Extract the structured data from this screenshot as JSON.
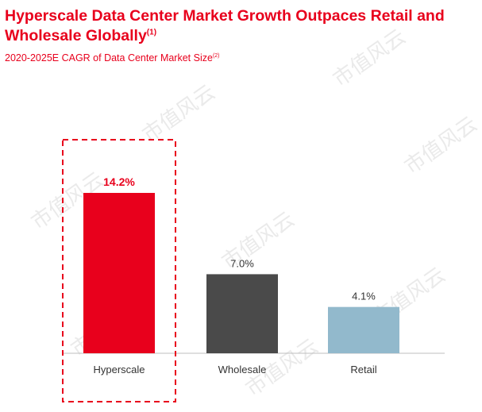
{
  "header": {
    "title": "Hyperscale Data Center Market Growth Outpaces Retail and Wholesale Globally",
    "title_note": "(1)",
    "subtitle": "2020-2025E CAGR of Data Center Market Size",
    "subtitle_note": "(2)"
  },
  "watermark": {
    "text": "市值风云"
  },
  "chart_data": {
    "type": "bar",
    "categories": [
      "Hyperscale",
      "Wholesale",
      "Retail"
    ],
    "values": [
      14.2,
      7.0,
      4.1
    ],
    "value_labels": [
      "14.2%",
      "7.0%",
      "4.1%"
    ],
    "colors": [
      "#e8001c",
      "#4a4a4a",
      "#92b9cc"
    ],
    "label_colors": [
      "#e8001c",
      "#333333",
      "#333333"
    ],
    "highlight_category": "Hyperscale",
    "highlight_color": "#e8001c",
    "unit": "%",
    "title": "2020-2025E CAGR of Data Center Market Size",
    "xlabel": "",
    "ylabel": "",
    "ylim": [
      0,
      14.2
    ],
    "grid": false,
    "legend": "none"
  }
}
